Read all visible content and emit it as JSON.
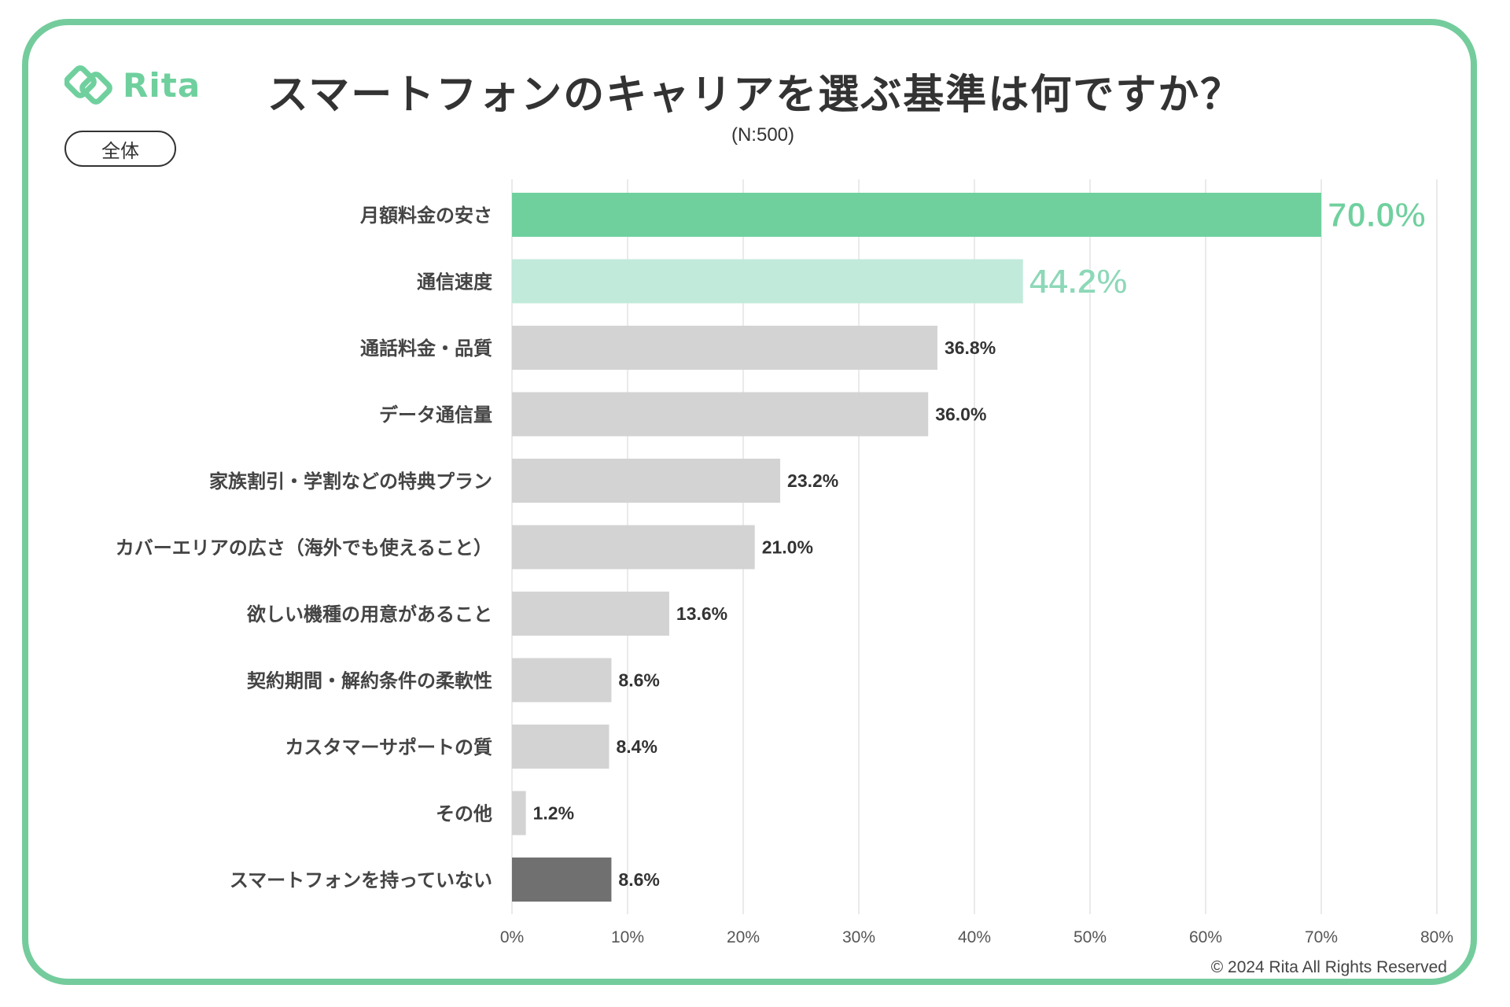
{
  "brand": {
    "name": "Rita",
    "logo_color": "#6fd09e"
  },
  "header": {
    "title": "スマートフォンのキャリアを選ぶ基準は何ですか？",
    "subtitle": "(N:500)",
    "segment": "全体"
  },
  "footer": {
    "copyright": "© 2024 Rita All Rights Reserved"
  },
  "colors": {
    "border": "#74cc9c",
    "top1": "#6fd09e",
    "top2": "#c1eadb",
    "default": "#d3d3d3",
    "none": "#707070",
    "grid": "#e3e3e3"
  },
  "chart_data": {
    "type": "bar",
    "orientation": "horizontal",
    "title": "スマートフォンのキャリアを選ぶ基準は何ですか？",
    "xlim": [
      0,
      80
    ],
    "xticks": [
      0,
      10,
      20,
      30,
      40,
      50,
      60,
      70,
      80
    ],
    "tick_suffix": "%",
    "categories": [
      "月額料金の安さ",
      "通信速度",
      "通話料金・品質",
      "データ通信量",
      "家族割引・学割などの特典プラン",
      "カバーエリアの広さ（海外でも使えること）",
      "欲しい機種の用意があること",
      "契約期間・解約条件の柔軟性",
      "カスタマーサポートの質",
      "その他",
      "スマートフォンを持っていない"
    ],
    "values": [
      70.0,
      44.2,
      36.8,
      36.0,
      23.2,
      21.0,
      13.6,
      8.6,
      8.4,
      1.2,
      8.6
    ],
    "value_labels": [
      "70.0%",
      "44.2%",
      "36.8%",
      "36.0%",
      "23.2%",
      "21.0%",
      "13.6%",
      "8.6%",
      "8.4%",
      "1.2%",
      "8.6%"
    ],
    "grid": true
  }
}
